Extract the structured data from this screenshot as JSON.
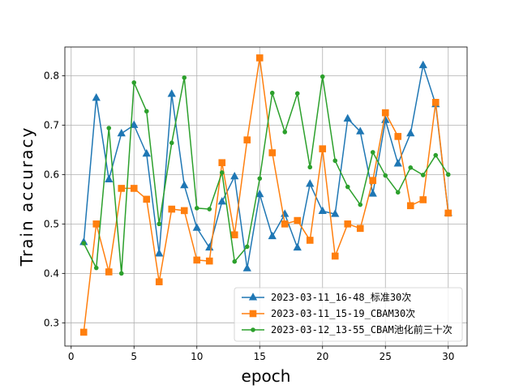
{
  "chart_data": {
    "type": "line",
    "xlabel": "epoch",
    "ylabel": "Train accuracy",
    "xlim": [
      -0.5,
      31.5
    ],
    "ylim": [
      0.253,
      0.858
    ],
    "xticks": [
      0,
      5,
      10,
      15,
      20,
      25,
      30
    ],
    "yticks": [
      0.3,
      0.4,
      0.5,
      0.6,
      0.7,
      0.8
    ],
    "grid": true,
    "legend_position": "lower-right",
    "x": [
      1,
      2,
      3,
      4,
      5,
      6,
      7,
      8,
      9,
      10,
      11,
      12,
      13,
      14,
      15,
      16,
      17,
      18,
      19,
      20,
      21,
      22,
      23,
      24,
      25,
      26,
      27,
      28,
      29,
      30
    ],
    "series": [
      {
        "name": "2023-03-11_16-48_标准30次",
        "color": "#1f77b4",
        "marker": "triangle",
        "values": [
          0.463,
          0.755,
          0.59,
          0.683,
          0.7,
          0.642,
          0.44,
          0.763,
          0.578,
          0.492,
          0.452,
          0.545,
          0.596,
          0.41,
          0.56,
          0.475,
          0.52,
          0.452,
          0.581,
          0.526,
          0.52,
          0.713,
          0.687,
          0.561,
          0.71,
          0.622,
          0.683,
          0.821,
          0.742,
          0.522
        ]
      },
      {
        "name": "2023-03-11_15-19_CBAM30次",
        "color": "#ff7f0e",
        "marker": "square",
        "values": [
          0.281,
          0.5,
          0.403,
          0.572,
          0.572,
          0.55,
          0.383,
          0.53,
          0.527,
          0.427,
          0.425,
          0.624,
          0.478,
          0.67,
          0.836,
          0.644,
          0.5,
          0.507,
          0.467,
          0.652,
          0.435,
          0.5,
          0.491,
          0.588,
          0.725,
          0.677,
          0.537,
          0.549,
          0.746,
          0.522
        ]
      },
      {
        "name": "2023-03-12_13-55_CBAM池化前三十次",
        "color": "#2ca02c",
        "marker": "dot",
        "values": [
          0.461,
          0.411,
          0.694,
          0.4,
          0.786,
          0.728,
          0.5,
          0.664,
          0.796,
          0.532,
          0.53,
          0.604,
          0.424,
          0.454,
          0.592,
          0.765,
          0.686,
          0.764,
          0.615,
          0.798,
          0.628,
          0.575,
          0.539,
          0.645,
          0.598,
          0.564,
          0.614,
          0.599,
          0.639,
          0.6
        ]
      }
    ]
  }
}
